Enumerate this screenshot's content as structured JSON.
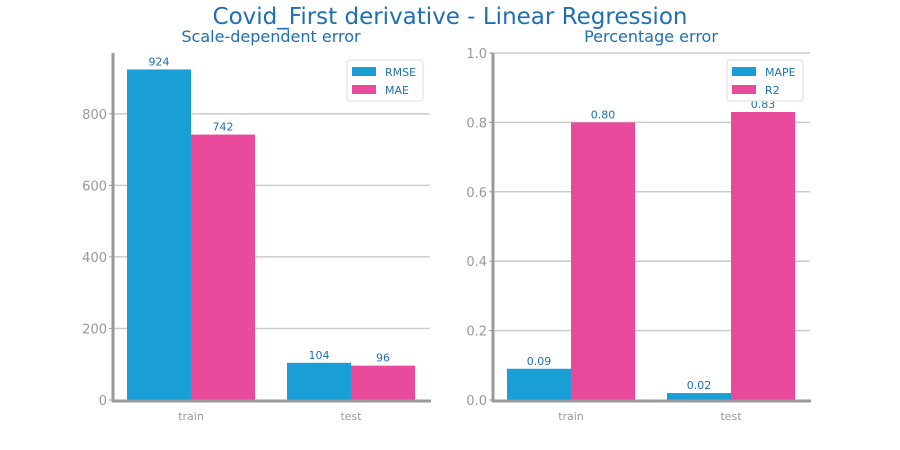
{
  "suptitle": "Covid_First derivative - Linear Regression",
  "colors": {
    "series_1": "#1a9ed6",
    "series_2": "#ea4a9b",
    "text": "#1f6fb2",
    "axis": "#999999",
    "grid": "#cccccc"
  },
  "chart_data": [
    {
      "type": "bar",
      "title": "Scale-dependent error",
      "categories": [
        "train",
        "test"
      ],
      "series": [
        {
          "name": "RMSE",
          "values": [
            924,
            104
          ],
          "labels": [
            "924",
            "104"
          ]
        },
        {
          "name": "MAE",
          "values": [
            742,
            96
          ],
          "labels": [
            "742",
            "96"
          ]
        }
      ],
      "ylim": [
        0,
        970
      ],
      "yticks": [
        0,
        200,
        400,
        600,
        800
      ],
      "ytick_labels": [
        "0",
        "200",
        "400",
        "600",
        "800"
      ],
      "grid": true,
      "legend": "top-right"
    },
    {
      "type": "bar",
      "title": "Percentage error",
      "categories": [
        "train",
        "test"
      ],
      "series": [
        {
          "name": "MAPE",
          "values": [
            0.09,
            0.02
          ],
          "labels": [
            "0.09",
            "0.02"
          ]
        },
        {
          "name": "R2",
          "values": [
            0.8,
            0.83
          ],
          "labels": [
            "0.80",
            "0.83"
          ]
        }
      ],
      "ylim": [
        0,
        1.0
      ],
      "yticks": [
        0,
        0.2,
        0.4,
        0.6,
        0.8,
        1.0
      ],
      "ytick_labels": [
        "0.0",
        "0.2",
        "0.4",
        "0.6",
        "0.8",
        "1.0"
      ],
      "grid": true,
      "legend": "top-right"
    }
  ]
}
